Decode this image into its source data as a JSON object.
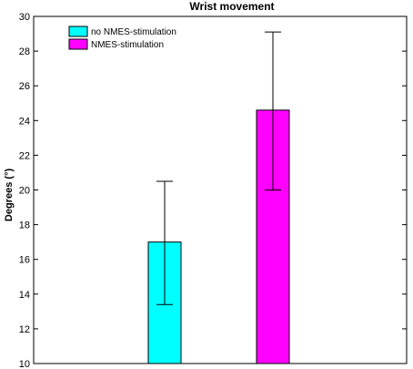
{
  "chart_data": {
    "type": "bar",
    "title": "Wrist movement",
    "xlabel": "",
    "ylabel": "Degrees (°)",
    "ylim": [
      10,
      30
    ],
    "yticks": [
      10,
      12,
      14,
      16,
      18,
      20,
      22,
      24,
      26,
      28,
      30
    ],
    "grid": false,
    "legend_position": "top-left",
    "series": [
      {
        "name": "no NMES-stimulation",
        "value": 17.0,
        "error_low": 13.4,
        "error_high": 20.5,
        "color": "#00ffff"
      },
      {
        "name": "NMES-stimulation",
        "value": 24.6,
        "error_low": 20.0,
        "error_high": 29.1,
        "color": "#ff00ff"
      }
    ]
  }
}
